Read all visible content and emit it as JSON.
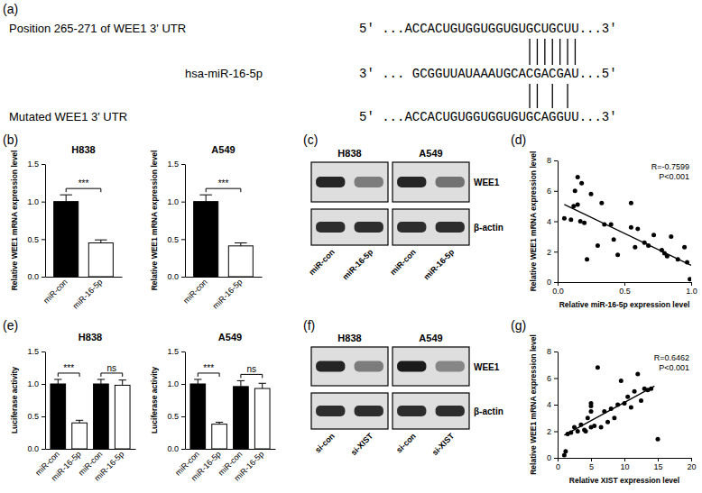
{
  "panel_labels": [
    "(a)",
    "(b)",
    "(c)",
    "(d)",
    "(e)",
    "(f)",
    "(g)"
  ],
  "alignment": {
    "rows": [
      {
        "label": "Position 265-271 of WEE1 3' UTR",
        "sequence": "5' ...ACCACUGUGGUGGUGUGCUGCUU...3'"
      },
      {
        "label": "hsa-miR-16-5p",
        "sequence": "3' ... GCGGUUAUAAAUGCACGACGAU...5'"
      },
      {
        "label": "Mutated WEE1 3' UTR",
        "sequence": "5' ...ACCACUGUGGUGGUGUGCAGGUU...3'"
      }
    ],
    "pairs": [
      [
        22,
        23,
        24,
        25,
        26,
        27,
        28
      ],
      [
        22,
        23,
        25,
        27
      ]
    ]
  },
  "chart_data": [
    {
      "type": "bar",
      "title": "H838",
      "ylabel": "Relative WEE1 mRNA expression level",
      "categories": [
        "miR-con",
        "miR-16-5p"
      ],
      "values": [
        1.0,
        0.45
      ],
      "errors": [
        0.09,
        0.04
      ],
      "colors": [
        "#000000",
        "#ffffff"
      ],
      "ylim": [
        0,
        1.5
      ],
      "yticks": [
        {
          "value": 0,
          "label": "0.0"
        },
        0.5,
        {
          "value": 1,
          "label": "1.0"
        },
        1.5
      ],
      "significance": [
        {
          "from": 0,
          "to": 1,
          "label": "***"
        }
      ]
    },
    {
      "type": "bar",
      "title": "A549",
      "ylabel": "Relative WEE1 mRNA expression level",
      "categories": [
        "miR-con",
        "miR-16-5p"
      ],
      "values": [
        1.0,
        0.41
      ],
      "errors": [
        0.09,
        0.04
      ],
      "colors": [
        "#000000",
        "#ffffff"
      ],
      "ylim": [
        0,
        1.5
      ],
      "yticks": [
        {
          "value": 0,
          "label": "0.0"
        },
        0.5,
        {
          "value": 1,
          "label": "1.0"
        },
        1.5
      ],
      "significance": [
        {
          "from": 0,
          "to": 1,
          "label": "***"
        }
      ]
    },
    {
      "type": "scatter",
      "xlabel": "Relative miR-16-5p expression level",
      "ylabel": "Relative WEE1 mRNA expression level",
      "x": [
        0.05,
        0.1,
        0.12,
        0.13,
        0.15,
        0.15,
        0.17,
        0.18,
        0.2,
        0.22,
        0.25,
        0.3,
        0.33,
        0.35,
        0.4,
        0.42,
        0.45,
        0.55,
        0.55,
        0.58,
        0.6,
        0.65,
        0.68,
        0.72,
        0.78,
        0.8,
        0.82,
        0.85,
        0.9,
        0.95,
        0.97,
        0.99
      ],
      "values": [
        4.2,
        4.1,
        5.0,
        6.0,
        5.1,
        6.9,
        4.0,
        6.5,
        3.9,
        1.5,
        5.8,
        2.4,
        5.2,
        3.8,
        3.8,
        2.8,
        1.8,
        3.6,
        5.2,
        2.3,
        3.5,
        2.6,
        2.4,
        3.1,
        2.1,
        1.9,
        1.7,
        3.0,
        1.5,
        2.3,
        1.3,
        0.2
      ],
      "xlim": [
        0,
        1
      ],
      "xticks": [
        {
          "value": 0,
          "label": "0.0"
        },
        0.5,
        {
          "value": 1,
          "label": "1.0"
        }
      ],
      "ylim": [
        0,
        8
      ],
      "yticks": [
        0,
        2,
        4,
        6,
        8
      ],
      "annotations": [
        "R=-0.7599",
        "P<0.001"
      ],
      "fit_line": {
        "x": [
          0.05,
          1.0
        ],
        "y": [
          5.1,
          1.1
        ]
      }
    },
    {
      "type": "bar",
      "title": "H838",
      "ylabel": "Luciferase activity",
      "categories": [
        "miR-con",
        "miR-16-5p",
        "miR-con",
        "miR-16-5p"
      ],
      "values": [
        1.0,
        0.4,
        1.0,
        0.98
      ],
      "errors": [
        0.07,
        0.04,
        0.07,
        0.08
      ],
      "colors": [
        "#000000",
        "#ffffff",
        "#000000",
        "#ffffff"
      ],
      "ylim": [
        0,
        1.5
      ],
      "yticks": [
        {
          "value": 0,
          "label": "0.0"
        },
        0.5,
        {
          "value": 1,
          "label": "1.0"
        },
        1.5
      ],
      "significance": [
        {
          "from": 0,
          "to": 1,
          "label": "***"
        },
        {
          "from": 2,
          "to": 3,
          "label": "ns"
        }
      ]
    },
    {
      "type": "bar",
      "title": "A549",
      "ylabel": "Luciferase activity",
      "categories": [
        "miR-con",
        "miR-16-5p",
        "miR-con",
        "miR-16-5p"
      ],
      "values": [
        1.0,
        0.38,
        0.96,
        0.93
      ],
      "errors": [
        0.07,
        0.03,
        0.09,
        0.08
      ],
      "colors": [
        "#000000",
        "#ffffff",
        "#000000",
        "#ffffff"
      ],
      "ylim": [
        0,
        1.5
      ],
      "yticks": [
        {
          "value": 0,
          "label": "0.0"
        },
        0.5,
        {
          "value": 1,
          "label": "1.0"
        },
        1.5
      ],
      "significance": [
        {
          "from": 0,
          "to": 1,
          "label": "***"
        },
        {
          "from": 2,
          "to": 3,
          "label": "ns"
        }
      ]
    },
    {
      "type": "scatter",
      "xlabel": "Relative XIST expression level",
      "ylabel": "Relative WEE1 mRNA expression level",
      "x": [
        1,
        1.2,
        1.5,
        2,
        2.5,
        3,
        3.5,
        4,
        4.2,
        4.5,
        5,
        5,
        5,
        5,
        5.5,
        6,
        6.5,
        7,
        7.5,
        8,
        8.5,
        9,
        9.5,
        10,
        10.5,
        11,
        11.5,
        12,
        12.5,
        13,
        13.5,
        14,
        15
      ],
      "values": [
        0.2,
        0.5,
        1.8,
        1.9,
        2.3,
        2.0,
        2.5,
        2.1,
        2.0,
        3.0,
        3.5,
        3.9,
        4.1,
        2.3,
        2.4,
        6.8,
        2.3,
        3.5,
        2.7,
        3.7,
        3.0,
        4.0,
        5.8,
        4.1,
        4.6,
        3.8,
        5.0,
        6.3,
        4.3,
        5.2,
        5.1,
        5.2,
        1.4
      ],
      "xlim": [
        0,
        20
      ],
      "xticks": [
        0,
        5,
        10,
        15,
        20
      ],
      "ylim": [
        0,
        8
      ],
      "yticks": [
        0,
        2,
        4,
        6,
        8
      ],
      "annotations": [
        "R=0.6462",
        "P<0.001"
      ],
      "fit_line": {
        "x": [
          1,
          14.5
        ],
        "y": [
          1.7,
          5.4
        ]
      }
    }
  ],
  "blots": [
    {
      "rows": [
        "WEE1",
        "β-actin"
      ],
      "groups": [
        {
          "title": "H838",
          "lanes": [
            "miR-con",
            "miR-16-5p"
          ],
          "bands": [
            [
              0.95,
              0.5
            ],
            [
              0.9,
              0.9
            ]
          ]
        },
        {
          "title": "A549",
          "lanes": [
            "miR-con",
            "miR-16-5p"
          ],
          "bands": [
            [
              0.95,
              0.55
            ],
            [
              0.9,
              0.9
            ]
          ]
        }
      ]
    },
    {
      "rows": [
        "WEE1",
        "β-actin"
      ],
      "groups": [
        {
          "title": "H838",
          "lanes": [
            "si-con",
            "si-XIST"
          ],
          "bands": [
            [
              0.95,
              0.5
            ],
            [
              0.9,
              0.9
            ]
          ]
        },
        {
          "title": "A549",
          "lanes": [
            "si-con",
            "si-XIST"
          ],
          "bands": [
            [
              1.0,
              0.45
            ],
            [
              0.9,
              0.9
            ]
          ]
        }
      ]
    }
  ]
}
